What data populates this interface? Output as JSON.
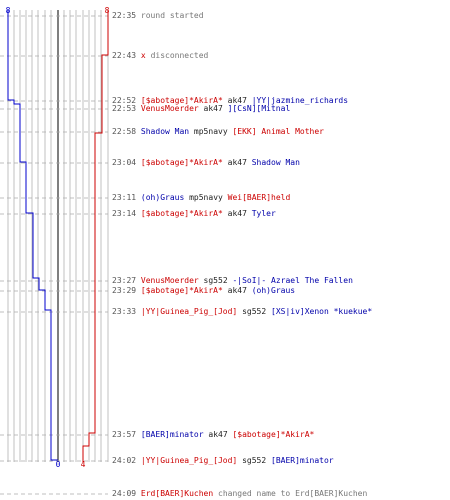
{
  "chart_data": {
    "type": "line",
    "series": [
      {
        "color": "#0000cc",
        "start": 8,
        "end": 0,
        "label_start": "8",
        "label_end": "0",
        "values": [
          8,
          8,
          7,
          7,
          6,
          6,
          5,
          5,
          4,
          4,
          3,
          2,
          2,
          1,
          1,
          0,
          0
        ]
      },
      {
        "color": "#cc0000",
        "start": 8,
        "end": 4,
        "label_start": "8",
        "label_end": "4",
        "values": [
          8,
          8,
          7,
          6,
          6,
          6,
          6,
          6,
          6,
          6,
          6,
          6,
          6,
          5,
          4,
          4,
          4
        ]
      }
    ]
  },
  "colors": {
    "blue_team": "#0000aa",
    "red_team": "#cc0000",
    "gridline": "#999999",
    "center_line": "#555555"
  },
  "events": [
    {
      "time": "22:35",
      "type": "status",
      "text": "round started"
    },
    {
      "time": "22:43",
      "type": "disconnect",
      "mark": "x",
      "text": "disconnected"
    },
    {
      "time": "22:52",
      "type": "kill",
      "killer": "[$abotage]*AkirA*",
      "killer_team": "red",
      "weapon": "ak47",
      "victim": "|YY|jazmine_richards",
      "victim_team": "blue"
    },
    {
      "time": "22:53",
      "type": "kill",
      "killer": "VenusMoerder",
      "killer_team": "red",
      "weapon": "ak47",
      "victim": "][CsN][Mitnal",
      "victim_team": "blue"
    },
    {
      "time": "22:58",
      "type": "kill",
      "killer": "Shadow Man",
      "killer_team": "blue",
      "weapon": "mp5navy",
      "victim": "[EKK] Animal Mother",
      "victim_team": "red"
    },
    {
      "time": "23:04",
      "type": "kill",
      "killer": "[$abotage]*AkirA*",
      "killer_team": "red",
      "weapon": "ak47",
      "victim": "Shadow Man",
      "victim_team": "blue"
    },
    {
      "time": "23:11",
      "type": "kill",
      "killer": "(oh)Graus",
      "killer_team": "blue",
      "weapon": "mp5navy",
      "victim": "Wei[BAER]held",
      "victim_team": "red"
    },
    {
      "time": "23:14",
      "type": "kill",
      "killer": "[$abotage]*AkirA*",
      "killer_team": "red",
      "weapon": "ak47",
      "victim": "Tyler",
      "victim_team": "blue"
    },
    {
      "time": "23:27",
      "type": "kill",
      "killer": "VenusMoerder",
      "killer_team": "red",
      "weapon": "sg552",
      "victim": "-|SoI|- Azrael The Fallen",
      "victim_team": "blue"
    },
    {
      "time": "23:29",
      "type": "kill",
      "killer": "[$abotage]*AkirA*",
      "killer_team": "red",
      "weapon": "ak47",
      "victim": "(oh)Graus",
      "victim_team": "blue"
    },
    {
      "time": "23:33",
      "type": "kill",
      "killer": "|YY|Guinea_Pig_[Jod]",
      "killer_team": "red",
      "weapon": "sg552",
      "victim": "[XS|iv]Xenon *kuekue*",
      "victim_team": "blue"
    },
    {
      "time": "23:57",
      "type": "kill",
      "killer": "[BAER]minator",
      "killer_team": "blue",
      "weapon": "ak47",
      "victim": "[$abotage]*AkirA*",
      "victim_team": "red"
    },
    {
      "time": "24:02",
      "type": "kill",
      "killer": "|YY|Guinea_Pig_[Jod]",
      "killer_team": "red",
      "weapon": "sg552",
      "victim": "[BAER]minator",
      "victim_team": "blue"
    },
    {
      "time": "24:09",
      "type": "rename",
      "killer": "Erd[BAER]Kuchen",
      "killer_team": "red",
      "text": "changed name to Erd[BAER]Kuchen"
    }
  ]
}
